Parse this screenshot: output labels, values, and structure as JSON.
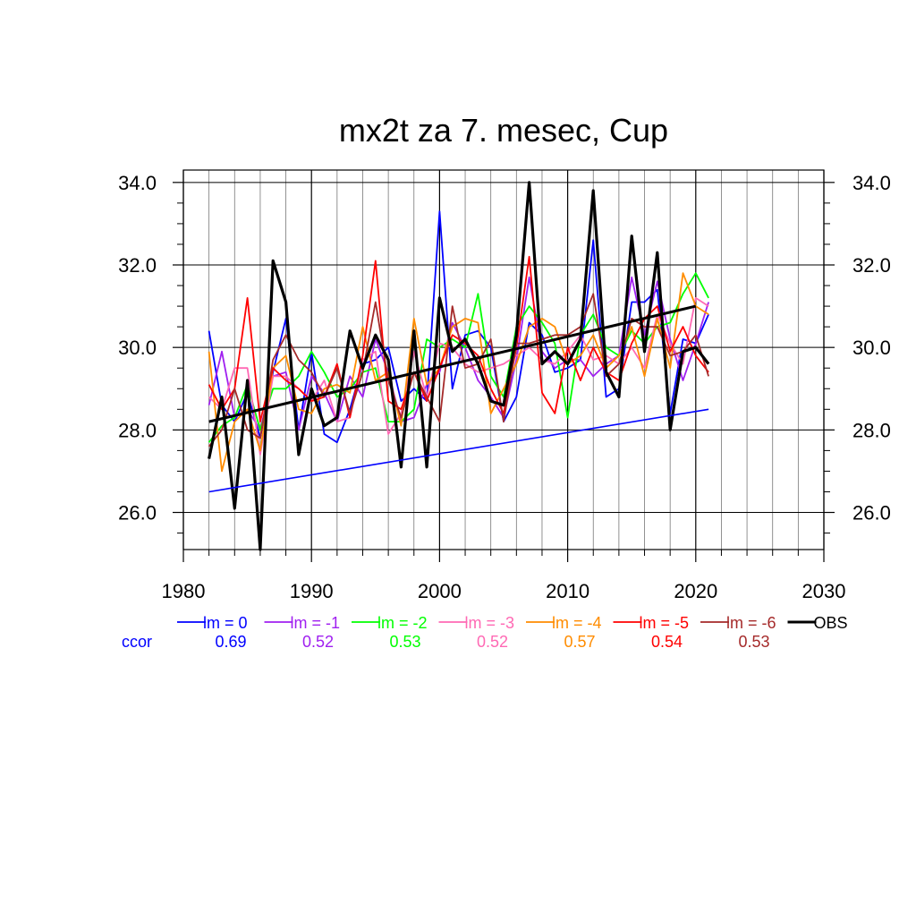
{
  "chart_data": {
    "type": "line",
    "title": "mx2t za 7. mesec, Cup",
    "xlabel": "",
    "ylabel": "",
    "xlim": [
      1980,
      2030
    ],
    "ylim": [
      25.1,
      34.3
    ],
    "x_ticks": [
      1980,
      1990,
      2000,
      2010,
      2020,
      2030
    ],
    "y_ticks": [
      26.0,
      28.0,
      30.0,
      32.0,
      34.0
    ],
    "y_tick_labels": [
      "26.0",
      "28.0",
      "30.0",
      "32.0",
      "34.0"
    ],
    "grid": true,
    "legend_position": "bottom",
    "ccor_label": "ccor",
    "years": [
      1982,
      1983,
      1984,
      1985,
      1986,
      1987,
      1988,
      1989,
      1990,
      1991,
      1992,
      1993,
      1994,
      1995,
      1996,
      1997,
      1998,
      1999,
      2000,
      2001,
      2002,
      2003,
      2004,
      2005,
      2006,
      2007,
      2008,
      2009,
      2010,
      2011,
      2012,
      2013,
      2014,
      2015,
      2016,
      2017,
      2018,
      2019,
      2020,
      2021
    ],
    "series": [
      {
        "name": "lm = 0",
        "color": "#0000ff",
        "ccor": "0.69",
        "values": [
          30.4,
          28.6,
          28.2,
          28.9,
          27.8,
          29.4,
          30.7,
          28.0,
          29.9,
          27.9,
          27.7,
          28.5,
          29.6,
          29.7,
          30.0,
          28.7,
          29.0,
          28.7,
          33.3,
          29.0,
          30.3,
          30.4,
          30.0,
          28.2,
          28.8,
          30.6,
          30.3,
          29.4,
          29.5,
          29.7,
          32.6,
          28.8,
          29.0,
          31.1,
          31.1,
          31.4,
          28.4,
          30.2,
          30.1,
          30.8
        ]
      },
      {
        "name": "lm = -1",
        "color": "#a020f0",
        "ccor": "0.52",
        "values": [
          28.6,
          29.9,
          28.3,
          28.5,
          28.0,
          29.3,
          29.4,
          28.0,
          29.3,
          28.9,
          28.2,
          29.3,
          28.8,
          30.2,
          29.4,
          28.2,
          28.3,
          29.1,
          29.4,
          30.6,
          30.0,
          29.2,
          28.8,
          28.3,
          29.7,
          31.7,
          29.9,
          29.5,
          29.7,
          29.7,
          29.3,
          29.6,
          29.8,
          31.7,
          30.3,
          31.6,
          30.2,
          29.2,
          30.1,
          31.1
        ]
      },
      {
        "name": "lm = -2",
        "color": "#00ff00",
        "ccor": "0.53",
        "values": [
          27.7,
          28.1,
          28.3,
          29.1,
          28.0,
          29.0,
          29.0,
          29.3,
          29.9,
          29.4,
          28.8,
          29.0,
          29.4,
          29.5,
          28.2,
          28.2,
          28.5,
          30.2,
          30.0,
          30.2,
          30.0,
          31.3,
          29.3,
          28.8,
          30.5,
          31.0,
          30.6,
          30.1,
          28.3,
          30.3,
          30.8,
          30.0,
          29.8,
          30.4,
          30.1,
          30.5,
          30.6,
          31.3,
          31.8,
          31.2
        ]
      },
      {
        "name": "lm = -3",
        "color": "#ff69b4",
        "ccor": "0.52",
        "values": [
          28.8,
          28.5,
          29.5,
          29.5,
          27.4,
          29.3,
          29.3,
          29.0,
          28.7,
          29.2,
          28.2,
          28.3,
          29.7,
          29.9,
          27.9,
          28.4,
          29.9,
          28.8,
          30.1,
          30.0,
          29.6,
          29.4,
          29.5,
          29.6,
          29.8,
          30.0,
          29.7,
          29.6,
          29.9,
          30.3,
          29.7,
          29.8,
          29.6,
          30.0,
          29.5,
          30.8,
          30.1,
          29.6,
          31.2,
          31.0
        ]
      },
      {
        "name": "lm = -4",
        "color": "#ff8c00",
        "ccor": "0.57",
        "values": [
          29.9,
          27.0,
          28.2,
          28.5,
          27.5,
          29.5,
          29.8,
          28.5,
          28.4,
          29.0,
          29.1,
          28.9,
          30.5,
          29.2,
          29.4,
          28.1,
          30.7,
          29.1,
          29.5,
          30.5,
          30.7,
          30.6,
          28.4,
          29.0,
          29.6,
          30.5,
          30.7,
          30.5,
          29.6,
          29.8,
          30.3,
          29.5,
          29.8,
          30.5,
          29.3,
          30.7,
          29.5,
          31.8,
          31.0,
          30.8
        ]
      },
      {
        "name": "lm = -5",
        "color": "#ff0000",
        "ccor": "0.54",
        "values": [
          29.1,
          28.5,
          29.0,
          31.2,
          28.2,
          29.5,
          29.2,
          29.0,
          28.7,
          28.8,
          29.6,
          28.3,
          29.8,
          32.1,
          28.7,
          28.5,
          29.4,
          28.7,
          29.5,
          30.3,
          30.1,
          29.8,
          29.0,
          28.4,
          30.0,
          32.2,
          28.9,
          28.4,
          30.0,
          29.2,
          30.0,
          29.4,
          29.2,
          30.1,
          30.7,
          31.0,
          29.9,
          30.5,
          29.8,
          29.4
        ]
      },
      {
        "name": "lm = -6",
        "color": "#a52a2a",
        "ccor": "0.53",
        "values": [
          27.6,
          28.0,
          29.0,
          28.0,
          27.8,
          29.7,
          30.3,
          29.7,
          29.4,
          28.8,
          29.5,
          28.4,
          29.4,
          31.1,
          29.2,
          28.3,
          29.4,
          28.8,
          28.2,
          31.0,
          29.5,
          29.6,
          30.2,
          28.2,
          30.1,
          30.1,
          30.2,
          30.3,
          30.3,
          30.5,
          31.3,
          29.3,
          29.6,
          30.7,
          30.5,
          30.5,
          29.8,
          29.9,
          30.3,
          29.3
        ]
      },
      {
        "name": "OBS",
        "color": "#000000",
        "ccor": "",
        "values": [
          27.3,
          28.8,
          26.1,
          29.2,
          25.1,
          32.1,
          31.1,
          27.4,
          29.0,
          28.1,
          28.3,
          30.4,
          29.5,
          30.3,
          29.7,
          27.1,
          30.4,
          27.1,
          31.2,
          29.9,
          30.2,
          29.6,
          28.7,
          28.6,
          30.3,
          34.0,
          29.6,
          29.9,
          29.6,
          30.2,
          33.8,
          29.4,
          28.8,
          32.7,
          29.9,
          32.3,
          28.0,
          29.9,
          30.0,
          29.6
        ]
      }
    ],
    "trend_lines": [
      {
        "name": "OBS trend",
        "color": "#000000",
        "x": [
          1982,
          2020
        ],
        "y": [
          28.2,
          31.0
        ]
      },
      {
        "name": "lm = 0 trend",
        "color": "#0000ff",
        "x": [
          1982,
          2021
        ],
        "y": [
          26.5,
          28.5
        ]
      }
    ]
  }
}
